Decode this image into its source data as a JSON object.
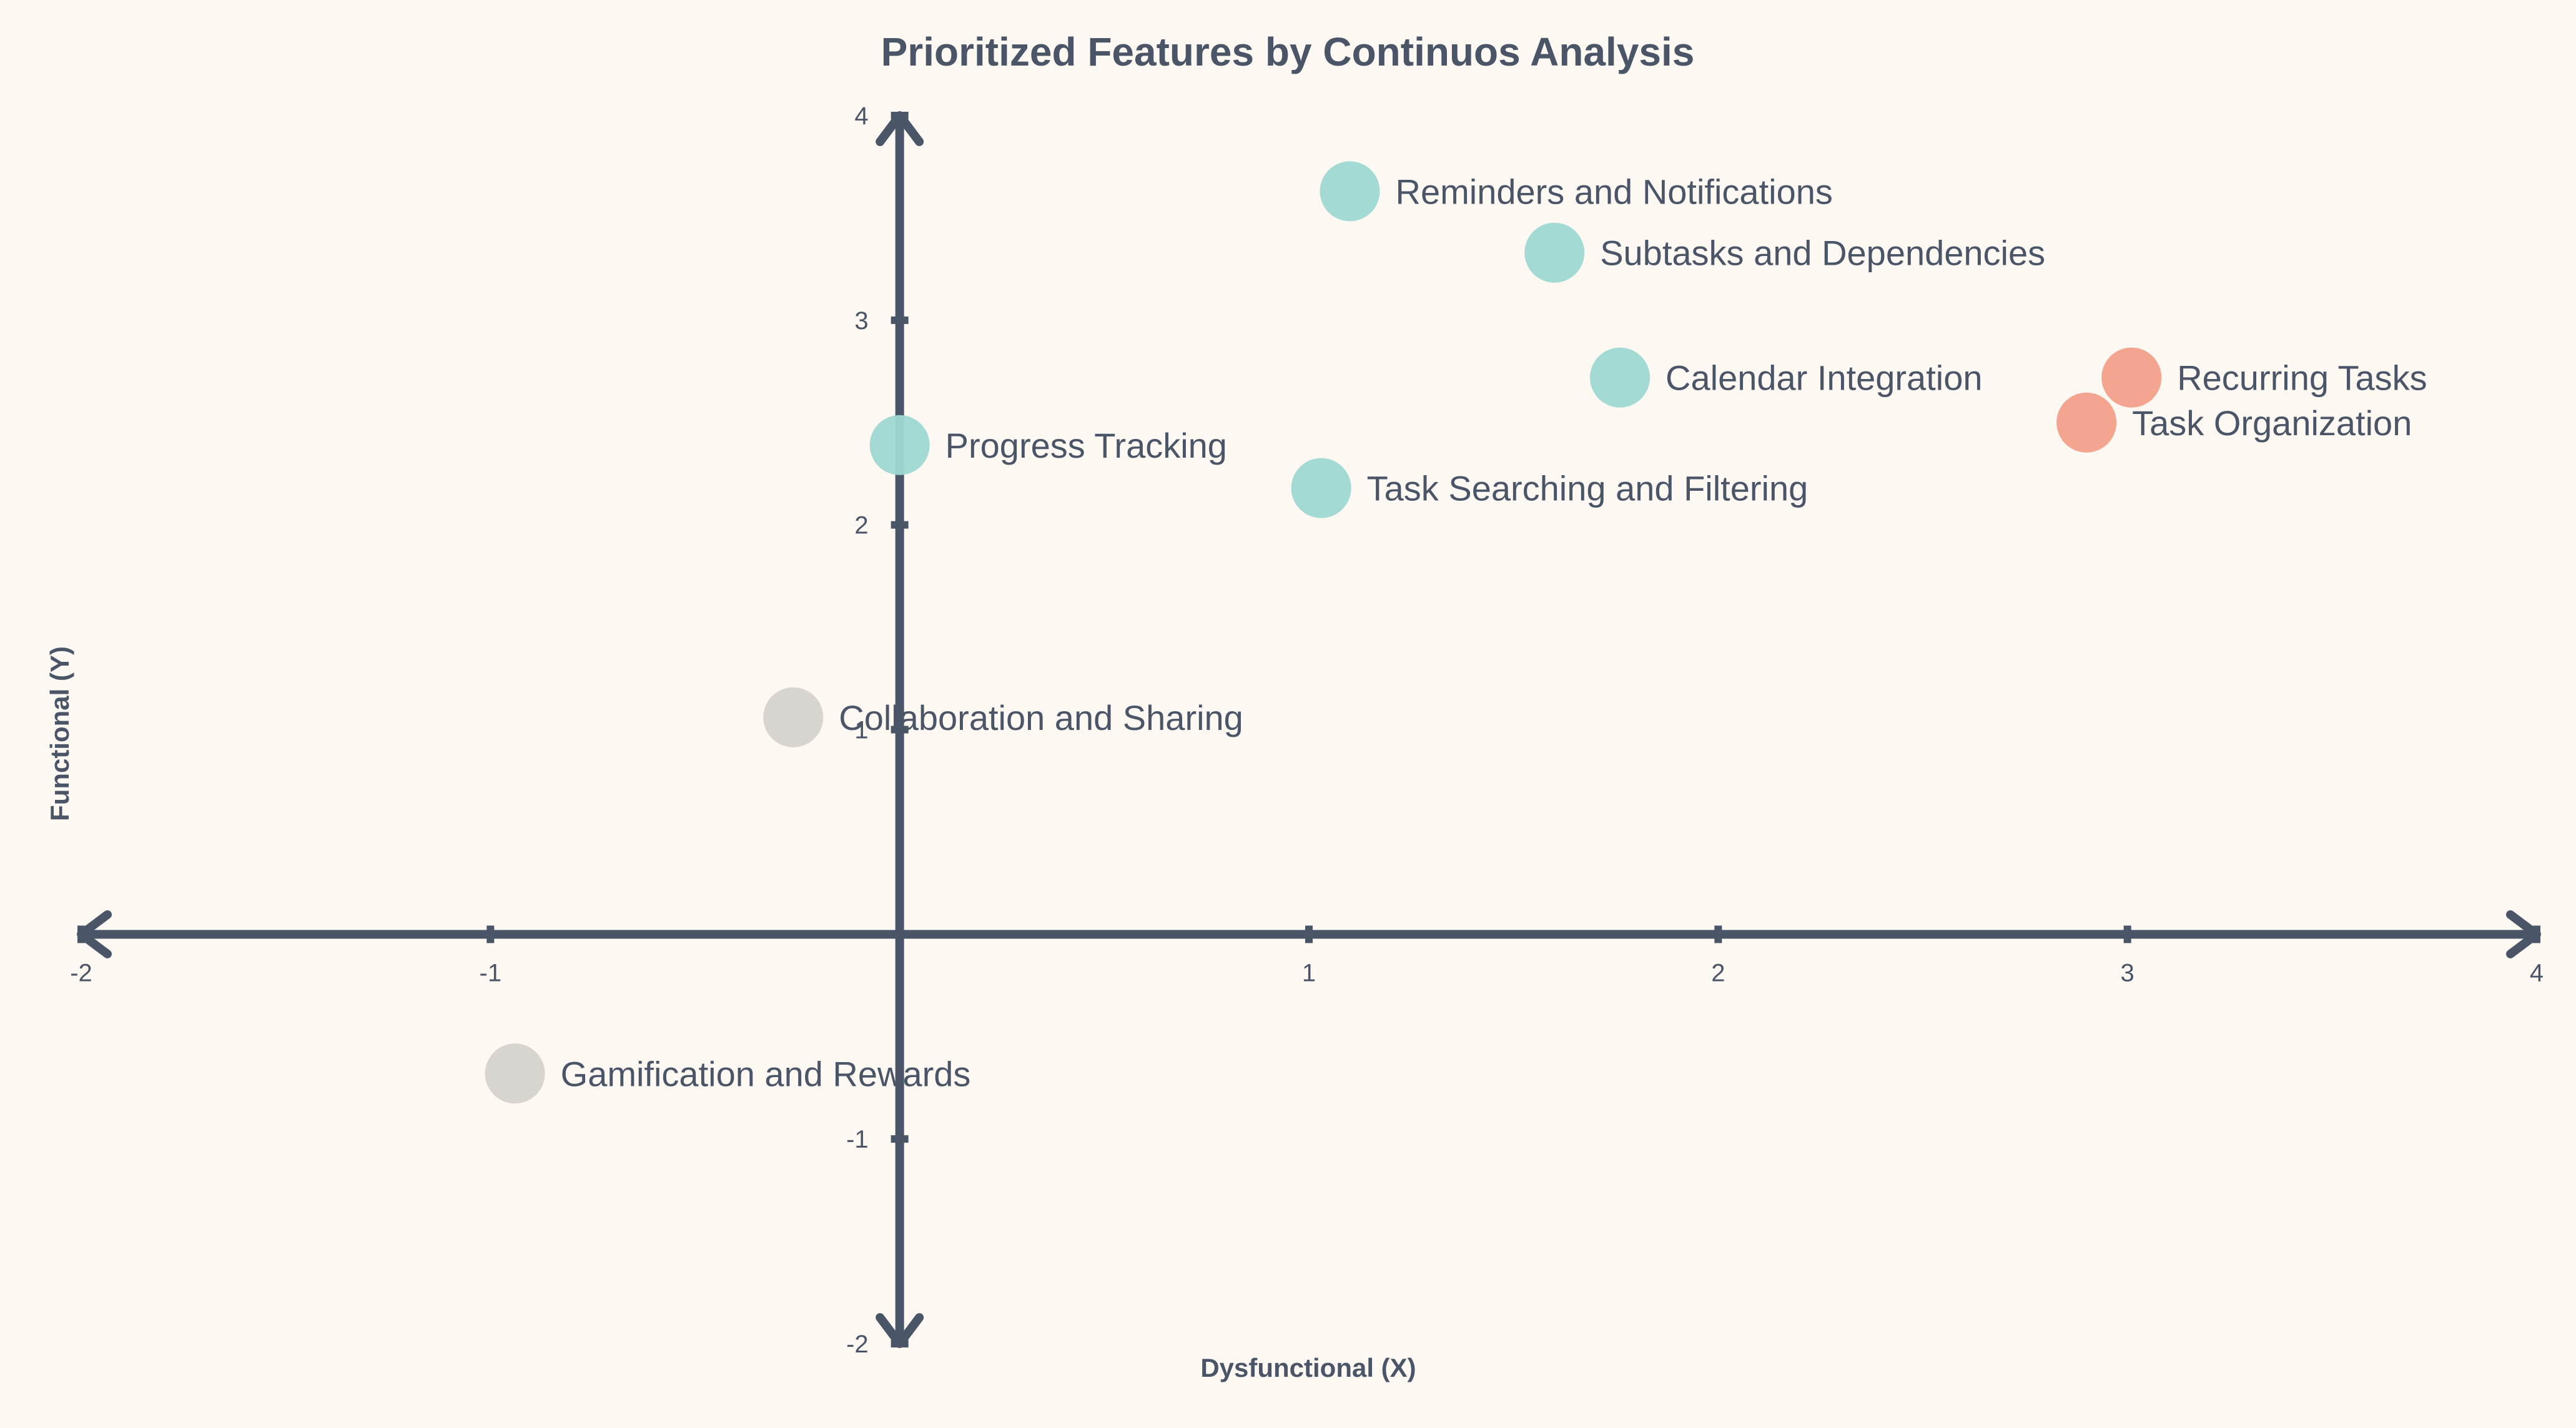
{
  "chart_data": {
    "type": "scatter",
    "title": "Prioritized Features by Continuos Analysis",
    "xlabel": "Dysfunctional (X)",
    "ylabel": "Functional (Y)",
    "xlim": [
      -2,
      4
    ],
    "ylim": [
      -2,
      4
    ],
    "xticks": [
      "-2",
      "-1",
      "1",
      "2",
      "3",
      "4"
    ],
    "yticks": [
      "-2",
      "-1",
      "1",
      "2",
      "3",
      "4"
    ],
    "grid": false,
    "colors": {
      "teal": "#9fd8d2",
      "salmon": "#f3a08a",
      "gray": "#d6d3ce",
      "axis": "#4a5568",
      "background": "#fdf8f2"
    },
    "points": [
      {
        "label": "Reminders and Notifications",
        "x": 1.1,
        "y": 3.63,
        "color": "teal"
      },
      {
        "label": "Subtasks and Dependencies",
        "x": 1.6,
        "y": 3.33,
        "color": "teal"
      },
      {
        "label": "Calendar Integration",
        "x": 1.76,
        "y": 2.72,
        "color": "teal"
      },
      {
        "label": "Recurring Tasks",
        "x": 3.01,
        "y": 2.72,
        "color": "salmon"
      },
      {
        "label": "Task Organization",
        "x": 2.9,
        "y": 2.5,
        "color": "salmon"
      },
      {
        "label": "Progress Tracking",
        "x": 0.0,
        "y": 2.39,
        "color": "teal"
      },
      {
        "label": "Task Searching and Filtering",
        "x": 1.03,
        "y": 2.18,
        "color": "teal"
      },
      {
        "label": "Collaboration and Sharing",
        "x": -0.26,
        "y": 1.06,
        "color": "gray"
      },
      {
        "label": "Gamification and Rewards",
        "x": -0.94,
        "y": -0.68,
        "color": "gray"
      }
    ]
  }
}
